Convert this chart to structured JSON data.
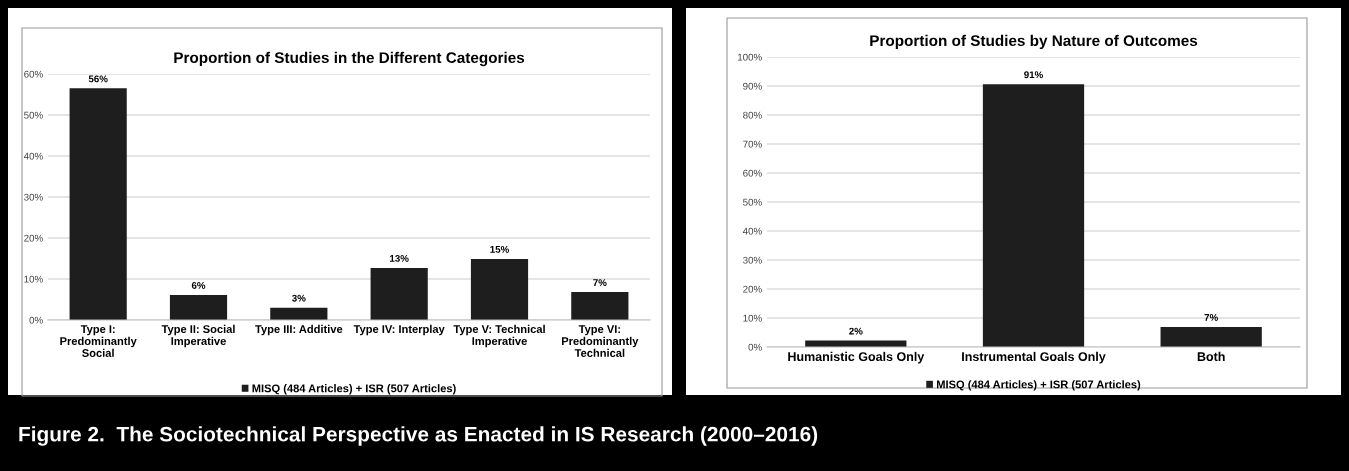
{
  "chart_data": [
    {
      "type": "bar",
      "title": "Proportion of Studies in the Different Categories",
      "categories": [
        "Type I:\nPredominantly\nSocial",
        "Type II: Social\nImperative",
        "Type III: Additive",
        "Type IV: Interplay",
        "Type V: Technical\nImperative",
        "Type VI:\nPredominantly\nTechnical"
      ],
      "series": [
        {
          "name": "MISQ (484 Articles) + ISR (507 Articles)",
          "color": "#1e1e1e",
          "values": [
            56.5,
            6.1,
            3.0,
            12.7,
            14.9,
            6.8
          ]
        }
      ],
      "value_labels": [
        "56%",
        "6%",
        "3%",
        "13%",
        "15%",
        "7%"
      ],
      "ylim": [
        0,
        60
      ],
      "yticks": [
        {
          "value": 0,
          "label": "0%"
        },
        {
          "value": 10,
          "label": "10%"
        },
        {
          "value": 20,
          "label": "20%"
        },
        {
          "value": 30,
          "label": "30%"
        },
        {
          "value": 40,
          "label": "40%"
        },
        {
          "value": 50,
          "label": "50%"
        },
        {
          "value": 60,
          "label": "60%"
        }
      ],
      "grid": "y",
      "legend": "bottom",
      "annotations": [
        "Figure 2.  The Sociotechnical Perspective as Enacted in IS Research (2000–2016)"
      ]
    },
    {
      "type": "bar",
      "title": "Proportion of Studies by Nature of Outcomes",
      "categories": [
        "Humanistic Goals Only",
        "Instrumental Goals Only",
        "Both"
      ],
      "series": [
        {
          "name": "MISQ (484 Articles) + ISR (507 Articles)",
          "color": "#1e1e1e",
          "values": [
            2.2,
            90.6,
            6.9
          ]
        }
      ],
      "value_labels": [
        "2%",
        "91%",
        "7%"
      ],
      "ylim": [
        0,
        100
      ],
      "yticks": [
        {
          "value": 0,
          "label": "0%"
        },
        {
          "value": 10,
          "label": "10%"
        },
        {
          "value": 20,
          "label": "20%"
        },
        {
          "value": 30,
          "label": "30%"
        },
        {
          "value": 40,
          "label": "40%"
        },
        {
          "value": 50,
          "label": "50%"
        },
        {
          "value": 60,
          "label": "60%"
        },
        {
          "value": 70,
          "label": "70%"
        },
        {
          "value": 80,
          "label": "80%"
        },
        {
          "value": 90,
          "label": "90%"
        },
        {
          "value": 100,
          "label": "100%"
        }
      ],
      "grid": "y",
      "legend": "bottom"
    }
  ]
}
